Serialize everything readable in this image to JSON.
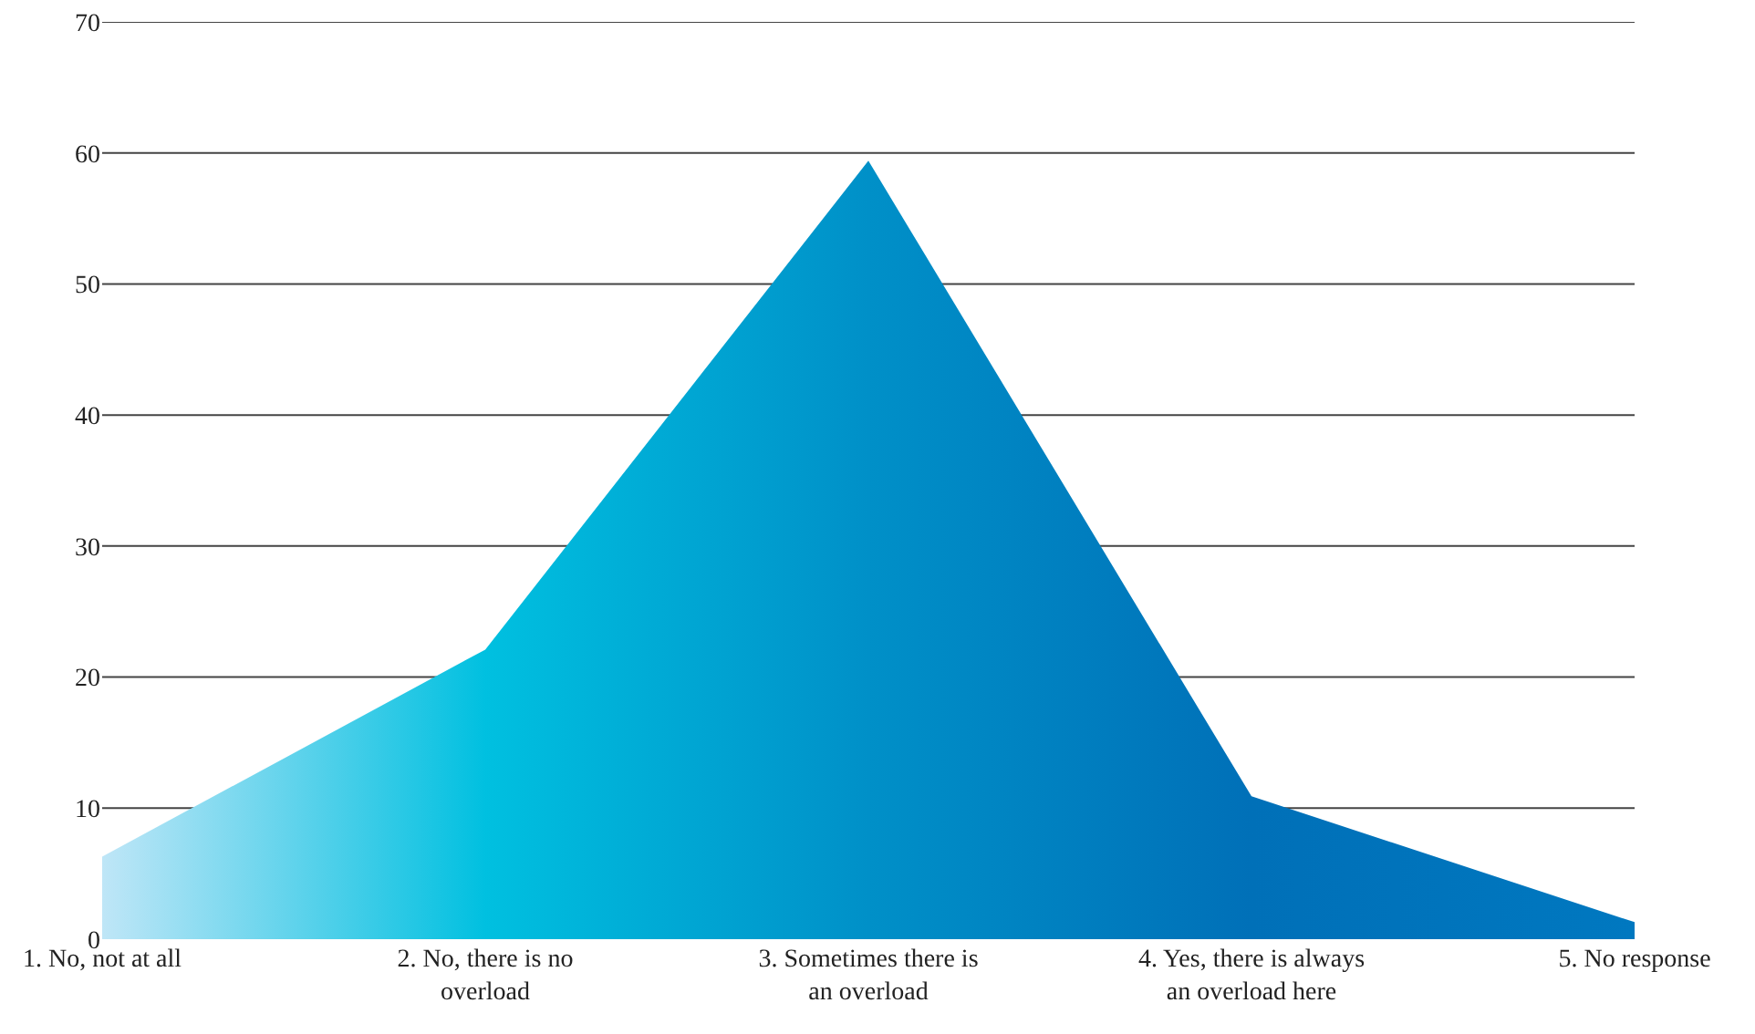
{
  "chart_data": {
    "type": "area",
    "categories": [
      "1. No, not at all",
      "2. No, there is no overload",
      "3. Sometimes there is an overload",
      "4. Yes, there is always an overload here",
      "5. No response"
    ],
    "values": [
      6.3,
      22.1,
      59.4,
      10.9,
      1.3
    ],
    "color": "#0090c8",
    "ylim": [
      0,
      70
    ],
    "yticks": [
      0,
      10,
      20,
      30,
      40,
      50,
      60,
      70
    ],
    "grid": "y"
  }
}
